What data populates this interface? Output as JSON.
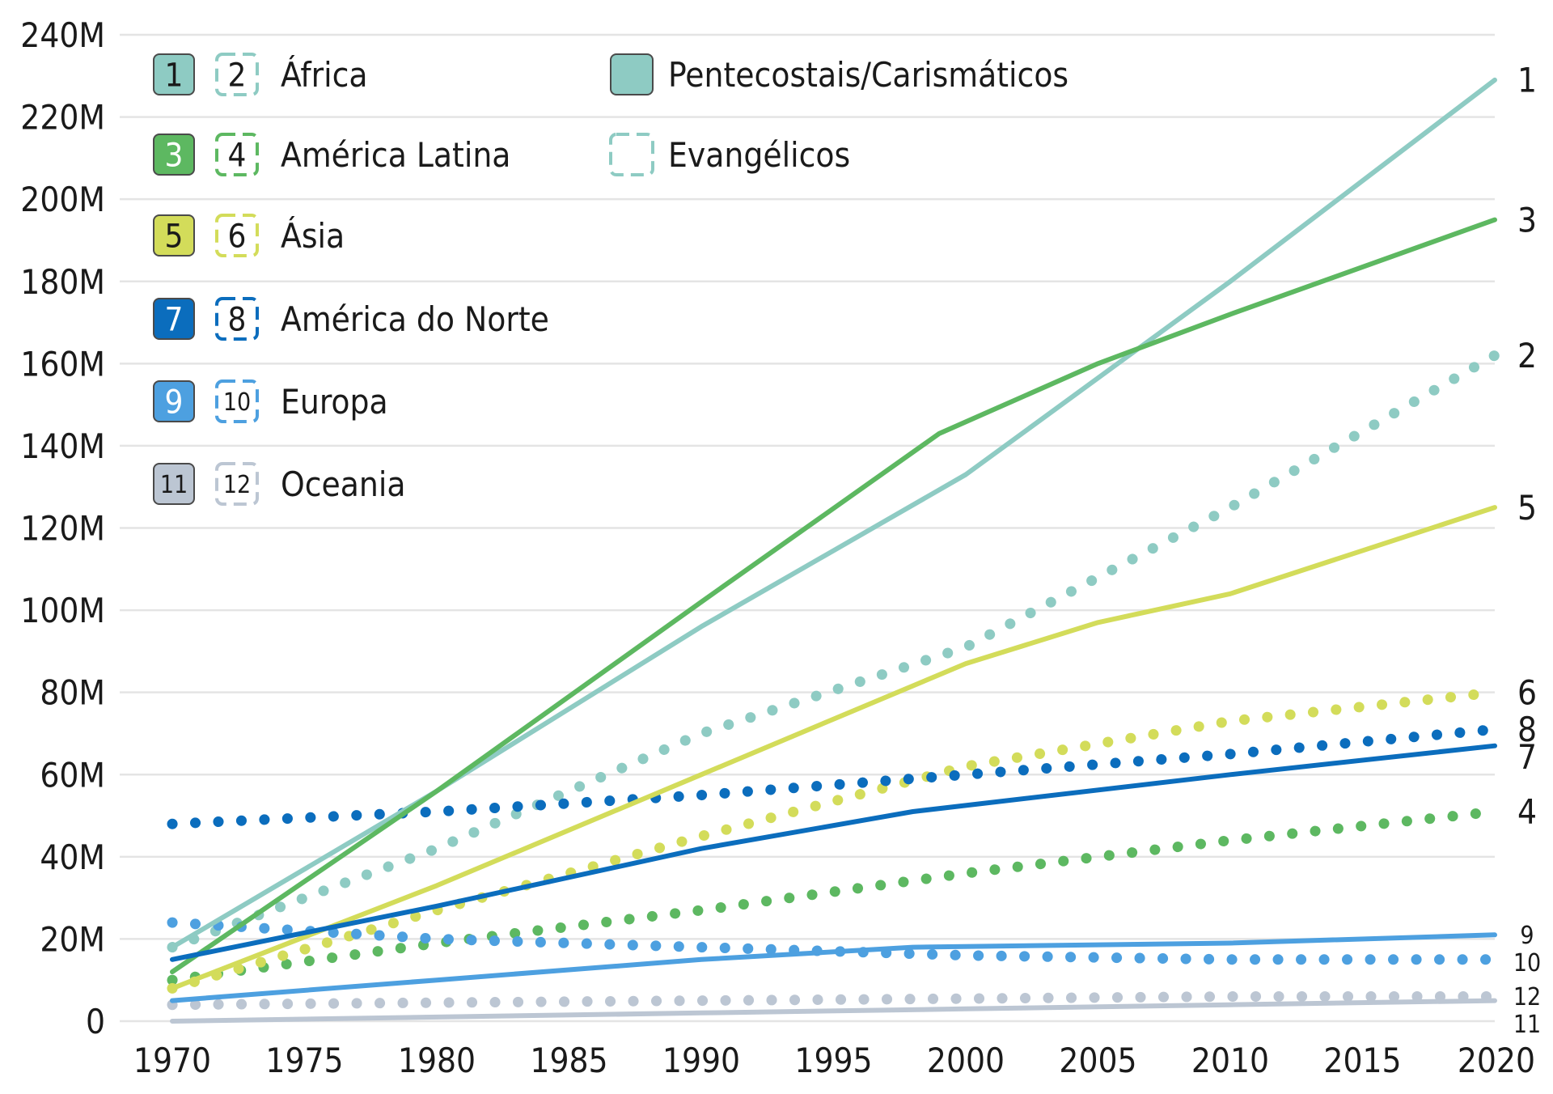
{
  "chart_data": {
    "type": "line",
    "title": "",
    "xlabel": "",
    "ylabel": "",
    "xlim": [
      1970,
      2020
    ],
    "ylim": [
      0,
      240
    ],
    "grid": "horizontal",
    "x_ticks": [
      "1970",
      "1975",
      "1980",
      "1985",
      "1990",
      "1995",
      "2000",
      "2005",
      "2010",
      "2015",
      "2020"
    ],
    "y_ticks": [
      {
        "value": 0,
        "label": "0"
      },
      {
        "value": 20,
        "label": "20M"
      },
      {
        "value": 40,
        "label": "40M"
      },
      {
        "value": 60,
        "label": "60M"
      },
      {
        "value": 80,
        "label": "80M"
      },
      {
        "value": 100,
        "label": "100M"
      },
      {
        "value": 120,
        "label": "120M"
      },
      {
        "value": 140,
        "label": "140M"
      },
      {
        "value": 160,
        "label": "160M"
      },
      {
        "value": 180,
        "label": "180M"
      },
      {
        "value": 200,
        "label": "200M"
      },
      {
        "value": 220,
        "label": "220M"
      },
      {
        "value": 240,
        "label": "240M"
      }
    ],
    "legend": {
      "placement": "top-left",
      "regions": [
        {
          "name": "África",
          "solid_num": "1",
          "dotted_num": "2",
          "color": "#8ecbc3"
        },
        {
          "name": "América Latina",
          "solid_num": "3",
          "dotted_num": "4",
          "color": "#5db861"
        },
        {
          "name": "Ásia",
          "solid_num": "5",
          "dotted_num": "6",
          "color": "#d3dc5a"
        },
        {
          "name": "América do Norte",
          "solid_num": "7",
          "dotted_num": "8",
          "color": "#0b6dbd"
        },
        {
          "name": "Europa",
          "solid_num": "9",
          "dotted_num": "10",
          "color": "#4da0e0"
        },
        {
          "name": "Oceania",
          "solid_num": "11",
          "dotted_num": "12",
          "color": "#bcc6d3"
        }
      ],
      "types": [
        {
          "name": "Pentecostais/Carismáticos",
          "style": "solid"
        },
        {
          "name": "Evangélicos",
          "style": "dotted"
        }
      ]
    },
    "series": [
      {
        "label": "1",
        "style": "solid",
        "color": "#8ecbc3",
        "x": [
          1970,
          1980,
          1990,
          2000,
          2010,
          2020
        ],
        "values": [
          18,
          56,
          96,
          133,
          180,
          229
        ]
      },
      {
        "label": "2",
        "style": "dotted",
        "color": "#8ecbc3",
        "x": [
          1970,
          1980,
          1990,
          2000,
          2010,
          2020
        ],
        "values": [
          18,
          42,
          70,
          91,
          125,
          162
        ]
      },
      {
        "label": "3",
        "style": "solid",
        "color": "#5db861",
        "x": [
          1970,
          1980,
          1990,
          1999,
          2005,
          2010,
          2020
        ],
        "values": [
          12,
          56,
          102,
          143,
          160,
          172,
          195
        ]
      },
      {
        "label": "4",
        "style": "dotted",
        "color": "#5db861",
        "x": [
          1970,
          1980,
          1990,
          2000,
          2010,
          2020
        ],
        "values": [
          10,
          19,
          27,
          36,
          44,
          51
        ]
      },
      {
        "label": "5",
        "style": "solid",
        "color": "#d3dc5a",
        "x": [
          1970,
          1980,
          1990,
          2000,
          2005,
          2010,
          2020
        ],
        "values": [
          8,
          33,
          60,
          87,
          97,
          104,
          125
        ]
      },
      {
        "label": "6",
        "style": "dotted",
        "color": "#d3dc5a",
        "x": [
          1970,
          1980,
          1990,
          2000,
          2010,
          2020
        ],
        "values": [
          8,
          27,
          45,
          62,
          73,
          80
        ]
      },
      {
        "label": "7",
        "style": "solid",
        "color": "#0b6dbd",
        "x": [
          1970,
          1980,
          1990,
          1998,
          2010,
          2020
        ],
        "values": [
          15,
          28,
          42,
          51,
          60,
          67
        ]
      },
      {
        "label": "8",
        "style": "dotted",
        "color": "#0b6dbd",
        "x": [
          1970,
          1980,
          1990,
          2000,
          2010,
          2020
        ],
        "values": [
          48,
          51,
          55,
          60,
          65,
          71
        ]
      },
      {
        "label": "9",
        "style": "solid",
        "color": "#4da0e0",
        "x": [
          1970,
          1980,
          1990,
          1998,
          2010,
          2020
        ],
        "values": [
          5,
          10,
          15,
          18,
          19,
          21
        ]
      },
      {
        "label": "10",
        "style": "dotted",
        "color": "#4da0e0",
        "x": [
          1970,
          1975,
          1980,
          1990,
          2000,
          2010,
          2020
        ],
        "values": [
          24,
          22,
          20,
          18,
          16,
          15,
          15
        ]
      },
      {
        "label": "11",
        "style": "solid",
        "color": "#bcc6d3",
        "x": [
          1970,
          1980,
          1990,
          2000,
          2010,
          2020
        ],
        "values": [
          0,
          1,
          2,
          3,
          4,
          5
        ]
      },
      {
        "label": "12",
        "style": "dotted",
        "color": "#bcc6d3",
        "x": [
          1970,
          1980,
          1990,
          2000,
          2010,
          2020
        ],
        "values": [
          4,
          4.5,
          5,
          5.5,
          6,
          6
        ]
      }
    ]
  }
}
